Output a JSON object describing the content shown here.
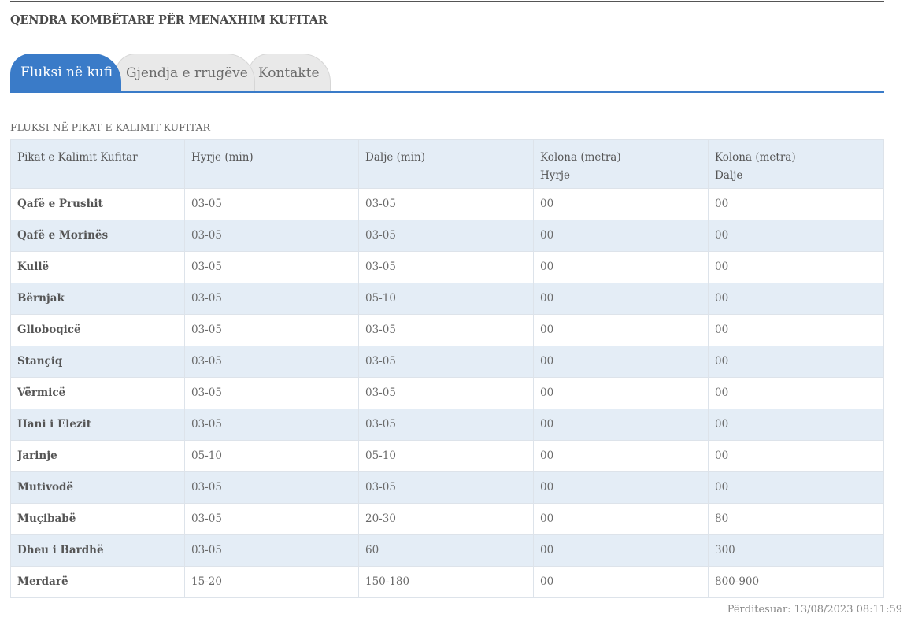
{
  "site_title": "QENDRA KOMBËTARE PËR MENAXHIM KUFITAR",
  "tabs": [
    {
      "label": "Fluksi në kufi",
      "active": true
    },
    {
      "label": "Gjendja e rrugëve",
      "active": false
    },
    {
      "label": "Kontakte",
      "active": false
    }
  ],
  "section_title": "FLUKSI NË PIKAT E KALIMIT KUFITAR",
  "table": {
    "headers": [
      {
        "line1": "Pikat e Kalimit Kufitar",
        "line2": ""
      },
      {
        "line1": "Hyrje (min)",
        "line2": ""
      },
      {
        "line1": "Dalje (min)",
        "line2": ""
      },
      {
        "line1": "Kolona (metra)",
        "line2": "Hyrje"
      },
      {
        "line1": "Kolona (metra)",
        "line2": "Dalje"
      }
    ],
    "rows": [
      [
        "Qafë e Prushit",
        "03-05",
        "03-05",
        "00",
        "00"
      ],
      [
        "Qafë e Morinës",
        "03-05",
        "03-05",
        "00",
        "00"
      ],
      [
        "Kullë",
        "03-05",
        "03-05",
        "00",
        "00"
      ],
      [
        "Bërnjak",
        "03-05",
        "05-10",
        "00",
        "00"
      ],
      [
        "Glloboqicë",
        "03-05",
        "03-05",
        "00",
        "00"
      ],
      [
        "Stançiq",
        "03-05",
        "03-05",
        "00",
        "00"
      ],
      [
        "Vërmicë",
        "03-05",
        "03-05",
        "00",
        "00"
      ],
      [
        "Hani i Elezit",
        "03-05",
        "03-05",
        "00",
        "00"
      ],
      [
        "Jarinje",
        "05-10",
        "05-10",
        "00",
        "00"
      ],
      [
        "Mutivodë",
        "03-05",
        "03-05",
        "00",
        "00"
      ],
      [
        "Muçibabë",
        "03-05",
        "20-30",
        "00",
        "80"
      ],
      [
        "Dheu i Bardhë",
        "03-05",
        "60",
        "00",
        "300"
      ],
      [
        "Merdarë",
        "15-20",
        "150-180",
        "00",
        "800-900"
      ]
    ]
  },
  "updated": {
    "label": "Përditesuar:",
    "value": "13/08/2023 08:11:59"
  },
  "colors": {
    "accent": "#3a7bc8",
    "row_alt": "#e4edf6",
    "tab_inactive": "#e9e9e9"
  }
}
